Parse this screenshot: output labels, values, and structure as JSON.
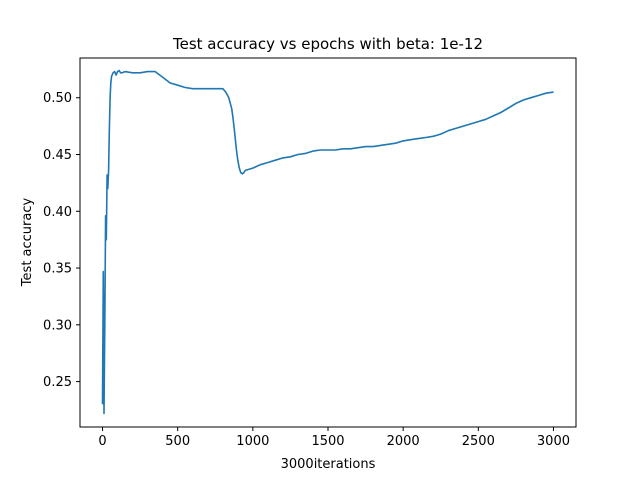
{
  "chart_data": {
    "type": "line",
    "title": "Test accuracy vs epochs with beta: 1e-12",
    "xlabel": "3000iterations",
    "ylabel": "Test accuracy",
    "xlim": [
      -150,
      3150
    ],
    "ylim": [
      0.21,
      0.535
    ],
    "xticks": [
      0,
      500,
      1000,
      1500,
      2000,
      2500,
      3000
    ],
    "yticks": [
      0.25,
      0.3,
      0.35,
      0.4,
      0.45,
      0.5
    ],
    "grid": false,
    "legend": "none",
    "series": [
      {
        "color": "#1f77b4",
        "x": [
          0,
          5,
          10,
          15,
          20,
          25,
          30,
          35,
          40,
          45,
          50,
          55,
          60,
          70,
          80,
          90,
          100,
          110,
          120,
          130,
          150,
          200,
          250,
          300,
          350,
          400,
          450,
          500,
          550,
          600,
          650,
          700,
          750,
          800,
          820,
          840,
          860,
          870,
          880,
          890,
          900,
          910,
          920,
          930,
          940,
          950,
          1000,
          1050,
          1100,
          1150,
          1200,
          1250,
          1300,
          1350,
          1400,
          1450,
          1500,
          1550,
          1600,
          1650,
          1700,
          1750,
          1800,
          1850,
          1900,
          1950,
          2000,
          2050,
          2100,
          2150,
          2200,
          2250,
          2300,
          2350,
          2400,
          2450,
          2500,
          2550,
          2600,
          2650,
          2700,
          2750,
          2800,
          2850,
          2900,
          2950,
          3000
        ],
        "values": [
          0.23,
          0.347,
          0.222,
          0.3,
          0.396,
          0.375,
          0.432,
          0.42,
          0.436,
          0.47,
          0.5,
          0.513,
          0.519,
          0.522,
          0.523,
          0.52,
          0.523,
          0.524,
          0.522,
          0.522,
          0.523,
          0.522,
          0.522,
          0.523,
          0.523,
          0.518,
          0.513,
          0.511,
          0.509,
          0.508,
          0.508,
          0.508,
          0.508,
          0.508,
          0.505,
          0.5,
          0.49,
          0.48,
          0.468,
          0.455,
          0.445,
          0.438,
          0.434,
          0.433,
          0.434,
          0.436,
          0.438,
          0.441,
          0.443,
          0.445,
          0.447,
          0.448,
          0.45,
          0.451,
          0.453,
          0.454,
          0.454,
          0.454,
          0.455,
          0.455,
          0.456,
          0.457,
          0.457,
          0.458,
          0.459,
          0.46,
          0.462,
          0.463,
          0.464,
          0.465,
          0.466,
          0.468,
          0.471,
          0.473,
          0.475,
          0.477,
          0.479,
          0.481,
          0.484,
          0.487,
          0.491,
          0.495,
          0.498,
          0.5,
          0.502,
          0.504,
          0.505
        ]
      }
    ]
  }
}
